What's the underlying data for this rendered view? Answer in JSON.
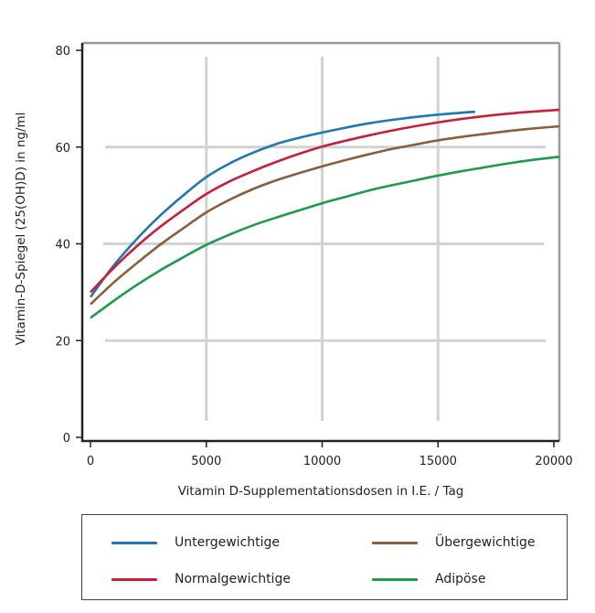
{
  "chart_data": {
    "type": "line",
    "title": "",
    "xlabel": "Vitamin D-Supplementationsdosen in I.E. / Tag",
    "ylabel": "Vitamin-D-Spiegel  (25(OH)D) in ng/ml",
    "xlim": [
      -500,
      20250
    ],
    "ylim": [
      0,
      80
    ],
    "xticks": [
      0,
      5000,
      10000,
      15000,
      20000
    ],
    "xtick_labels": [
      "0",
      "5000",
      "10000",
      "15000",
      "20000"
    ],
    "yticks": [
      0,
      20,
      40,
      60,
      80
    ],
    "ytick_labels": [
      "0",
      "20",
      "40",
      "60",
      "80"
    ],
    "grid": true,
    "legend_position": "bottom",
    "series": [
      {
        "name": "Untergewichtige",
        "color": "#1f77b4",
        "x": [
          0,
          1000,
          2000,
          3000,
          4000,
          5000,
          6000,
          7000,
          8000,
          9000,
          10000,
          11000,
          12000,
          13000,
          14000,
          15000,
          16000,
          16600
        ],
        "y": [
          29.0,
          35.5,
          41.0,
          45.8,
          50.0,
          53.8,
          56.6,
          58.8,
          60.6,
          61.9,
          63.0,
          64.0,
          64.9,
          65.6,
          66.2,
          66.7,
          67.1,
          67.3
        ]
      },
      {
        "name": "Normalgewichtige",
        "color": "#c8203a",
        "x": [
          0,
          1000,
          2000,
          3000,
          4000,
          5000,
          6000,
          7000,
          8000,
          9000,
          10000,
          11000,
          12000,
          13000,
          14000,
          15000,
          16000,
          17000,
          18000,
          19000,
          20250
        ],
        "y": [
          30.0,
          35.0,
          39.5,
          43.5,
          47.0,
          50.3,
          52.9,
          55.0,
          56.9,
          58.6,
          60.1,
          61.3,
          62.4,
          63.4,
          64.3,
          65.1,
          65.8,
          66.4,
          66.9,
          67.3,
          67.7
        ]
      },
      {
        "name": "Übergewichtige",
        "color": "#8b5e3c",
        "x": [
          0,
          1000,
          2000,
          3000,
          4000,
          5000,
          6000,
          7000,
          8000,
          9000,
          10000,
          11000,
          12000,
          13000,
          14000,
          15000,
          16000,
          17000,
          18000,
          19000,
          20250
        ],
        "y": [
          27.5,
          32.0,
          36.0,
          39.8,
          43.2,
          46.5,
          49.1,
          51.3,
          53.1,
          54.6,
          56.0,
          57.3,
          58.5,
          59.6,
          60.5,
          61.4,
          62.1,
          62.7,
          63.3,
          63.8,
          64.3
        ]
      },
      {
        "name": "Adipöse",
        "color": "#1e9a4e",
        "x": [
          0,
          1000,
          2000,
          3000,
          4000,
          5000,
          6000,
          7000,
          8000,
          9000,
          10000,
          11000,
          12000,
          13000,
          14000,
          15000,
          16000,
          17000,
          18000,
          19000,
          20250
        ],
        "y": [
          24.7,
          28.2,
          31.5,
          34.5,
          37.2,
          39.8,
          41.9,
          43.8,
          45.4,
          46.9,
          48.4,
          49.7,
          51.0,
          52.1,
          53.1,
          54.1,
          55.0,
          55.8,
          56.6,
          57.3,
          58.0
        ]
      }
    ]
  },
  "legend": {
    "items": [
      {
        "label": "Untergewichtige",
        "color": "#1f77b4"
      },
      {
        "label": "Normalgewichtige",
        "color": "#c8203a"
      },
      {
        "label": "Übergewichtige",
        "color": "#8b5e3c"
      },
      {
        "label": "Adipöse",
        "color": "#1e9a4e"
      }
    ]
  }
}
